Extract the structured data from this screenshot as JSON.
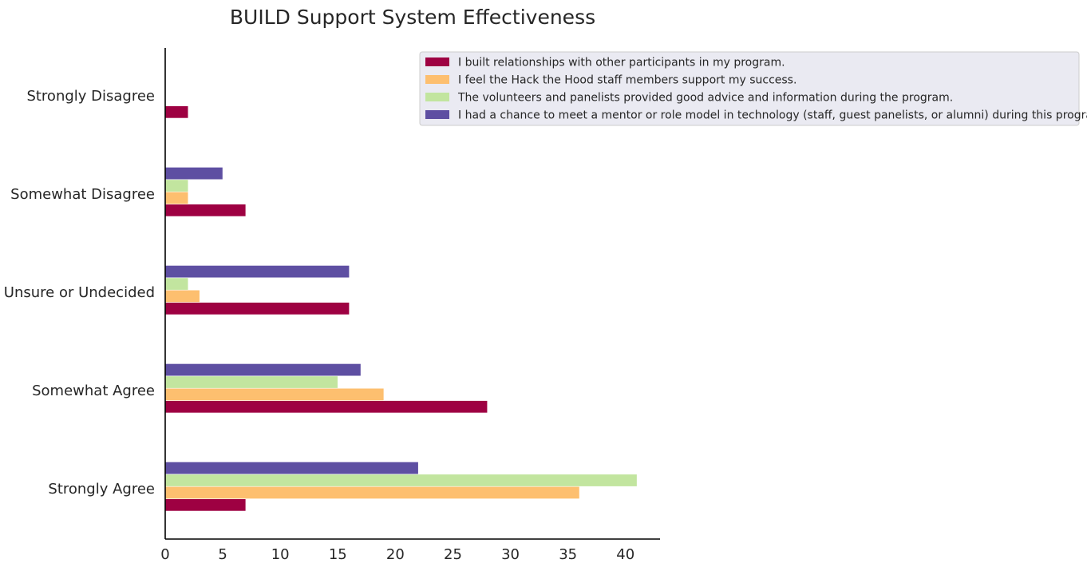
{
  "chart_data": {
    "type": "bar",
    "orientation": "horizontal",
    "title": "BUILD Support System Effectiveness",
    "xlabel": "",
    "ylabel": "",
    "categories": [
      "Strongly Disagree",
      "Somewhat Disagree",
      "Unsure or Undecided",
      "Somewhat Agree",
      "Strongly Agree"
    ],
    "series": [
      {
        "name": "I built relationships with other participants in my program.",
        "color": "#9e0142",
        "values": [
          2,
          7,
          16,
          28,
          7
        ]
      },
      {
        "name": "I feel the Hack the Hood staff members support my success.",
        "color": "#fdbf6f",
        "values": [
          0,
          2,
          3,
          19,
          36
        ]
      },
      {
        "name": "The volunteers and panelists provided good advice and information during the program.",
        "color": "#c2e59f",
        "values": [
          0,
          2,
          2,
          15,
          41
        ]
      },
      {
        "name": "I had a chance to meet a mentor or role model in technology (staff, guest panelists, or alumni) during this program.",
        "color": "#5e4fa2",
        "values": [
          0,
          5,
          16,
          17,
          22
        ]
      }
    ],
    "xticks": [
      0,
      5,
      10,
      15,
      20,
      25,
      30,
      35,
      40
    ],
    "xlim": [
      0,
      43
    ],
    "grid": false,
    "legend_position": "top-right"
  }
}
